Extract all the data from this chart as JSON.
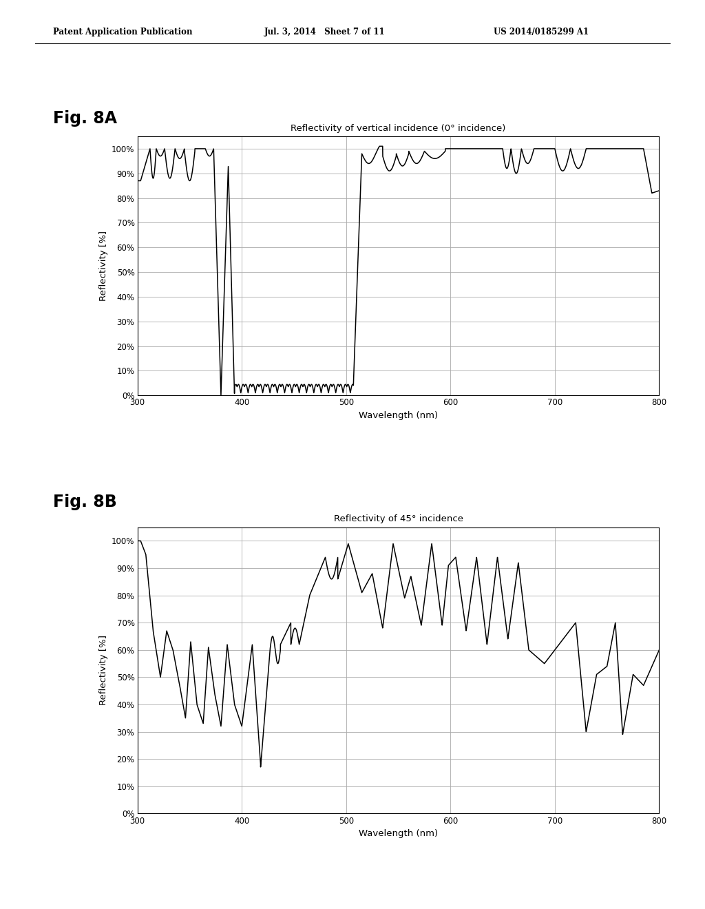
{
  "header_left": "Patent Application Publication",
  "header_mid": "Jul. 3, 2014   Sheet 7 of 11",
  "header_right": "US 2014/0185299 A1",
  "fig_label_a": "Fig. 8A",
  "fig_label_b": "Fig. 8B",
  "title_a": "Reflectivity of vertical incidence (0° incidence)",
  "title_b": "Reflectivity of 45° incidence",
  "xlabel": "Wavelength (nm)",
  "ylabel": "Reflectivity [%]",
  "xlim": [
    300,
    800
  ],
  "ylim": [
    0,
    105
  ],
  "yticks": [
    0,
    10,
    20,
    30,
    40,
    50,
    60,
    70,
    80,
    90,
    100
  ],
  "ytick_labels": [
    "0%",
    "10%",
    "20%",
    "30%",
    "40%",
    "50%",
    "60%",
    "70%",
    "80%",
    "90%",
    "100%"
  ],
  "xticks": [
    300,
    400,
    500,
    600,
    700,
    800
  ],
  "background_color": "#ffffff",
  "line_color": "#000000",
  "grid_color": "#aaaaaa"
}
